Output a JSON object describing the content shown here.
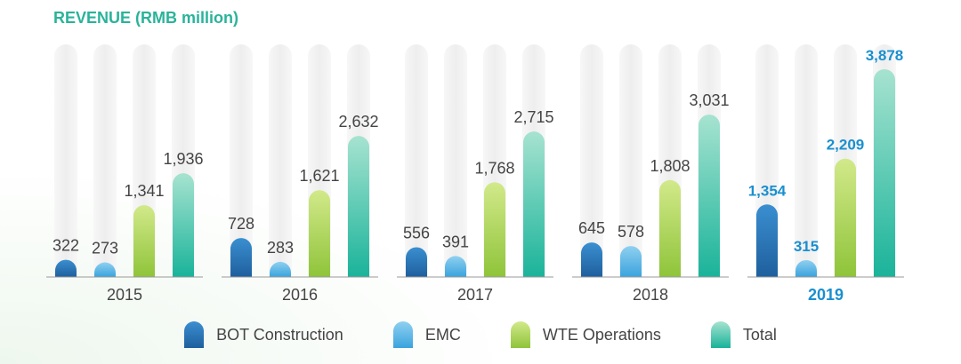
{
  "chart_data": {
    "type": "bar",
    "title": "REVENUE (RMB million)",
    "categories": [
      "2015",
      "2016",
      "2017",
      "2018",
      "2019"
    ],
    "highlight_category": "2019",
    "series": [
      {
        "name": "BOT Construction",
        "values": [
          322,
          728,
          556,
          645,
          1354
        ],
        "color_top": "#3a8fd0",
        "color_bottom": "#1f5f9e"
      },
      {
        "name": "EMC",
        "values": [
          273,
          283,
          391,
          578,
          315
        ],
        "color_top": "#8fd0f0",
        "color_bottom": "#3aa3dd"
      },
      {
        "name": "WTE Operations",
        "values": [
          1341,
          1621,
          1768,
          1808,
          2209
        ],
        "color_top": "#d2e98a",
        "color_bottom": "#8fc43a"
      },
      {
        "name": "Total",
        "values": [
          1936,
          2632,
          2715,
          3031,
          3878
        ],
        "color_top": "#a6e3d0",
        "color_bottom": "#1ab39a"
      }
    ],
    "value_labels": [
      [
        "322",
        "728",
        "556",
        "645",
        "1,354"
      ],
      [
        "273",
        "283",
        "391",
        "578",
        "315"
      ],
      [
        "1,341",
        "1,621",
        "1,768",
        "1,808",
        "2,209"
      ],
      [
        "1,936",
        "2,632",
        "2,715",
        "3,031",
        "3,878"
      ]
    ],
    "ylim": [
      0,
      3878
    ],
    "grid": false,
    "legend_position": "bottom",
    "label_color": "#444444",
    "highlight_color": "#1a8fcf",
    "track_color": "#eeeeee",
    "baseline_color": "#999999"
  }
}
